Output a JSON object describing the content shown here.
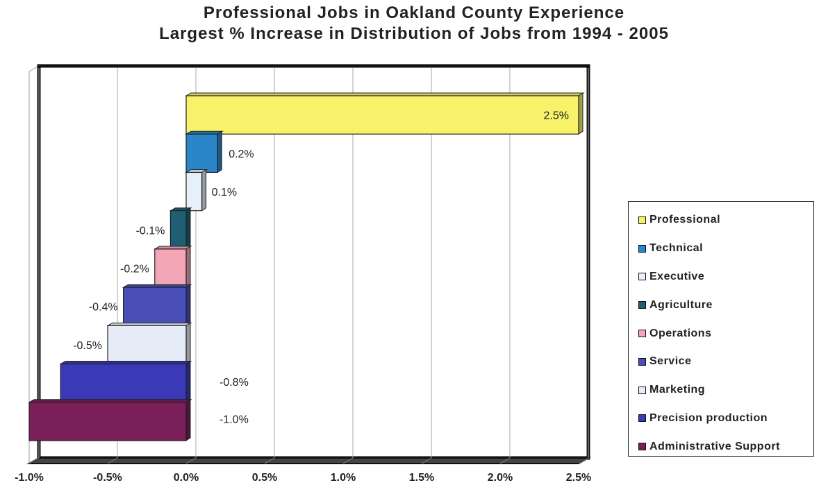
{
  "chart_data": {
    "type": "bar",
    "orientation": "horizontal",
    "title_lines": [
      "Professional Jobs in Oakland County Experience",
      "Largest % Increase in Distribution of Jobs from 1994 - 2005"
    ],
    "categories": [
      "Professional",
      "Technical",
      "Executive",
      "Agriculture",
      "Operations",
      "Service",
      "Marketing",
      "Precision production",
      "Administrative Support"
    ],
    "values": [
      2.5,
      0.2,
      0.1,
      -0.1,
      -0.2,
      -0.4,
      -0.5,
      -0.8,
      -1.0
    ],
    "value_labels": [
      "2.5%",
      "0.2%",
      "0.1%",
      "-0.1%",
      "-0.2%",
      "-0.4%",
      "-0.5%",
      "-0.8%",
      "-1.0%"
    ],
    "colors": [
      "#f7f26a",
      "#2a86c8",
      "#e6f0fa",
      "#1f5f73",
      "#f2a6b6",
      "#4a4fb8",
      "#e6ecf8",
      "#3a3ab8",
      "#7a1f5a"
    ],
    "x_ticks": [
      "-1.0%",
      "-0.5%",
      "0.0%",
      "0.5%",
      "1.0%",
      "1.5%",
      "2.0%",
      "2.5%"
    ],
    "xlim": [
      -1.0,
      2.5
    ],
    "grid": true,
    "legend_position": "right"
  }
}
